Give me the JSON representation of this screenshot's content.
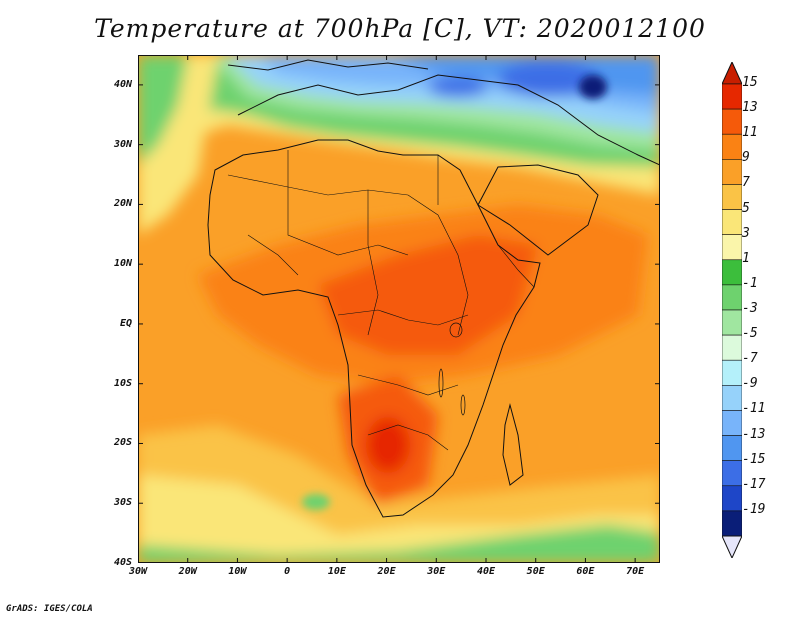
{
  "title": "Temperature at 700hPa [C], VT: 2020012100",
  "credit": "GrADS: IGES/COLA",
  "map": {
    "lon_range": [
      -30,
      75
    ],
    "lat_range": [
      -40,
      45
    ],
    "lat_ticks": [
      {
        "value": 40,
        "label": "40N"
      },
      {
        "value": 30,
        "label": "30N"
      },
      {
        "value": 20,
        "label": "20N"
      },
      {
        "value": 10,
        "label": "10N"
      },
      {
        "value": 0,
        "label": "EQ"
      },
      {
        "value": -10,
        "label": "10S"
      },
      {
        "value": -20,
        "label": "20S"
      },
      {
        "value": -30,
        "label": "30S"
      },
      {
        "value": -40,
        "label": "40S"
      }
    ],
    "lon_ticks": [
      {
        "value": -30,
        "label": "30W"
      },
      {
        "value": -20,
        "label": "20W"
      },
      {
        "value": -10,
        "label": "10W"
      },
      {
        "value": 0,
        "label": "0"
      },
      {
        "value": 10,
        "label": "10E"
      },
      {
        "value": 20,
        "label": "20E"
      },
      {
        "value": 30,
        "label": "30E"
      },
      {
        "value": 40,
        "label": "40E"
      },
      {
        "value": 50,
        "label": "50E"
      },
      {
        "value": 60,
        "label": "60E"
      },
      {
        "value": 70,
        "label": "70E"
      }
    ]
  },
  "colorbar": {
    "levels": [
      {
        "label": "15",
        "color": "#e62800"
      },
      {
        "label": "13",
        "color": "#f55a0a"
      },
      {
        "label": "11",
        "color": "#fa8214"
      },
      {
        "label": "9",
        "color": "#faa028"
      },
      {
        "label": "7",
        "color": "#fac346"
      },
      {
        "label": "5",
        "color": "#fae678"
      },
      {
        "label": "3",
        "color": "#faf5aa"
      },
      {
        "label": "1",
        "color": "#3cbe3c"
      },
      {
        "label": "-1",
        "color": "#6ed26e"
      },
      {
        "label": "-3",
        "color": "#a0e6a0"
      },
      {
        "label": "-5",
        "color": "#dcfadc"
      },
      {
        "label": "-7",
        "color": "#b4f0fa"
      },
      {
        "label": "-9",
        "color": "#96d2fa"
      },
      {
        "label": "-11",
        "color": "#78b4fa"
      },
      {
        "label": "-13",
        "color": "#5096f0"
      },
      {
        "label": "-15",
        "color": "#3c6ee6"
      },
      {
        "label": "-17",
        "color": "#1e46c8"
      },
      {
        "label": "-19",
        "color": "#0a1e78"
      }
    ],
    "top_arrow_color": "#c81e00",
    "bottom_arrow_color": "#e6e6fa"
  }
}
